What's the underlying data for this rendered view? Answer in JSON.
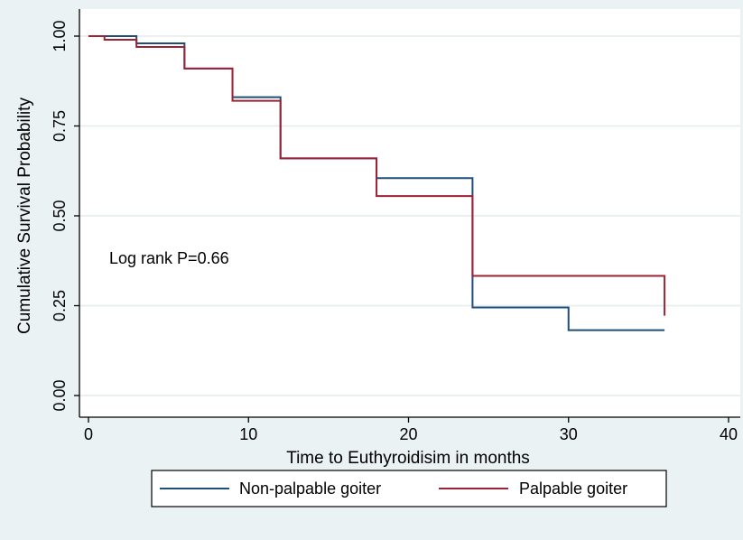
{
  "chart_data": {
    "type": "line",
    "step": true,
    "title": "",
    "xlabel": "Time to Euthyroidisim in months",
    "ylabel": "Cumulative Survival Probability",
    "xlim": [
      0,
      40
    ],
    "ylim": [
      0,
      1
    ],
    "x_ticks": [
      0,
      10,
      20,
      30,
      40
    ],
    "x_tick_labels": [
      "0",
      "10",
      "20",
      "30",
      "40"
    ],
    "y_ticks": [
      0,
      0.25,
      0.5,
      0.75,
      1
    ],
    "y_tick_labels": [
      "0.00",
      "0.25",
      "0.50",
      "0.75",
      "1.00"
    ],
    "grid": "horizontal",
    "legend_position": "bottom",
    "annotation": "Log rank P=0.66",
    "series": [
      {
        "name": "Non-palpable goiter",
        "color": "#1f4e79",
        "x": [
          0,
          3,
          6,
          9,
          12,
          18,
          24,
          30,
          36
        ],
        "y": [
          1.0,
          0.98,
          0.91,
          0.83,
          0.66,
          0.605,
          0.245,
          0.182,
          0.182
        ]
      },
      {
        "name": "Palpable goiter",
        "color": "#9b2335",
        "x": [
          0,
          1,
          3,
          6,
          9,
          12,
          18,
          24,
          36
        ],
        "y": [
          1.0,
          0.99,
          0.97,
          0.91,
          0.82,
          0.66,
          0.555,
          0.333,
          0.222
        ]
      }
    ]
  }
}
